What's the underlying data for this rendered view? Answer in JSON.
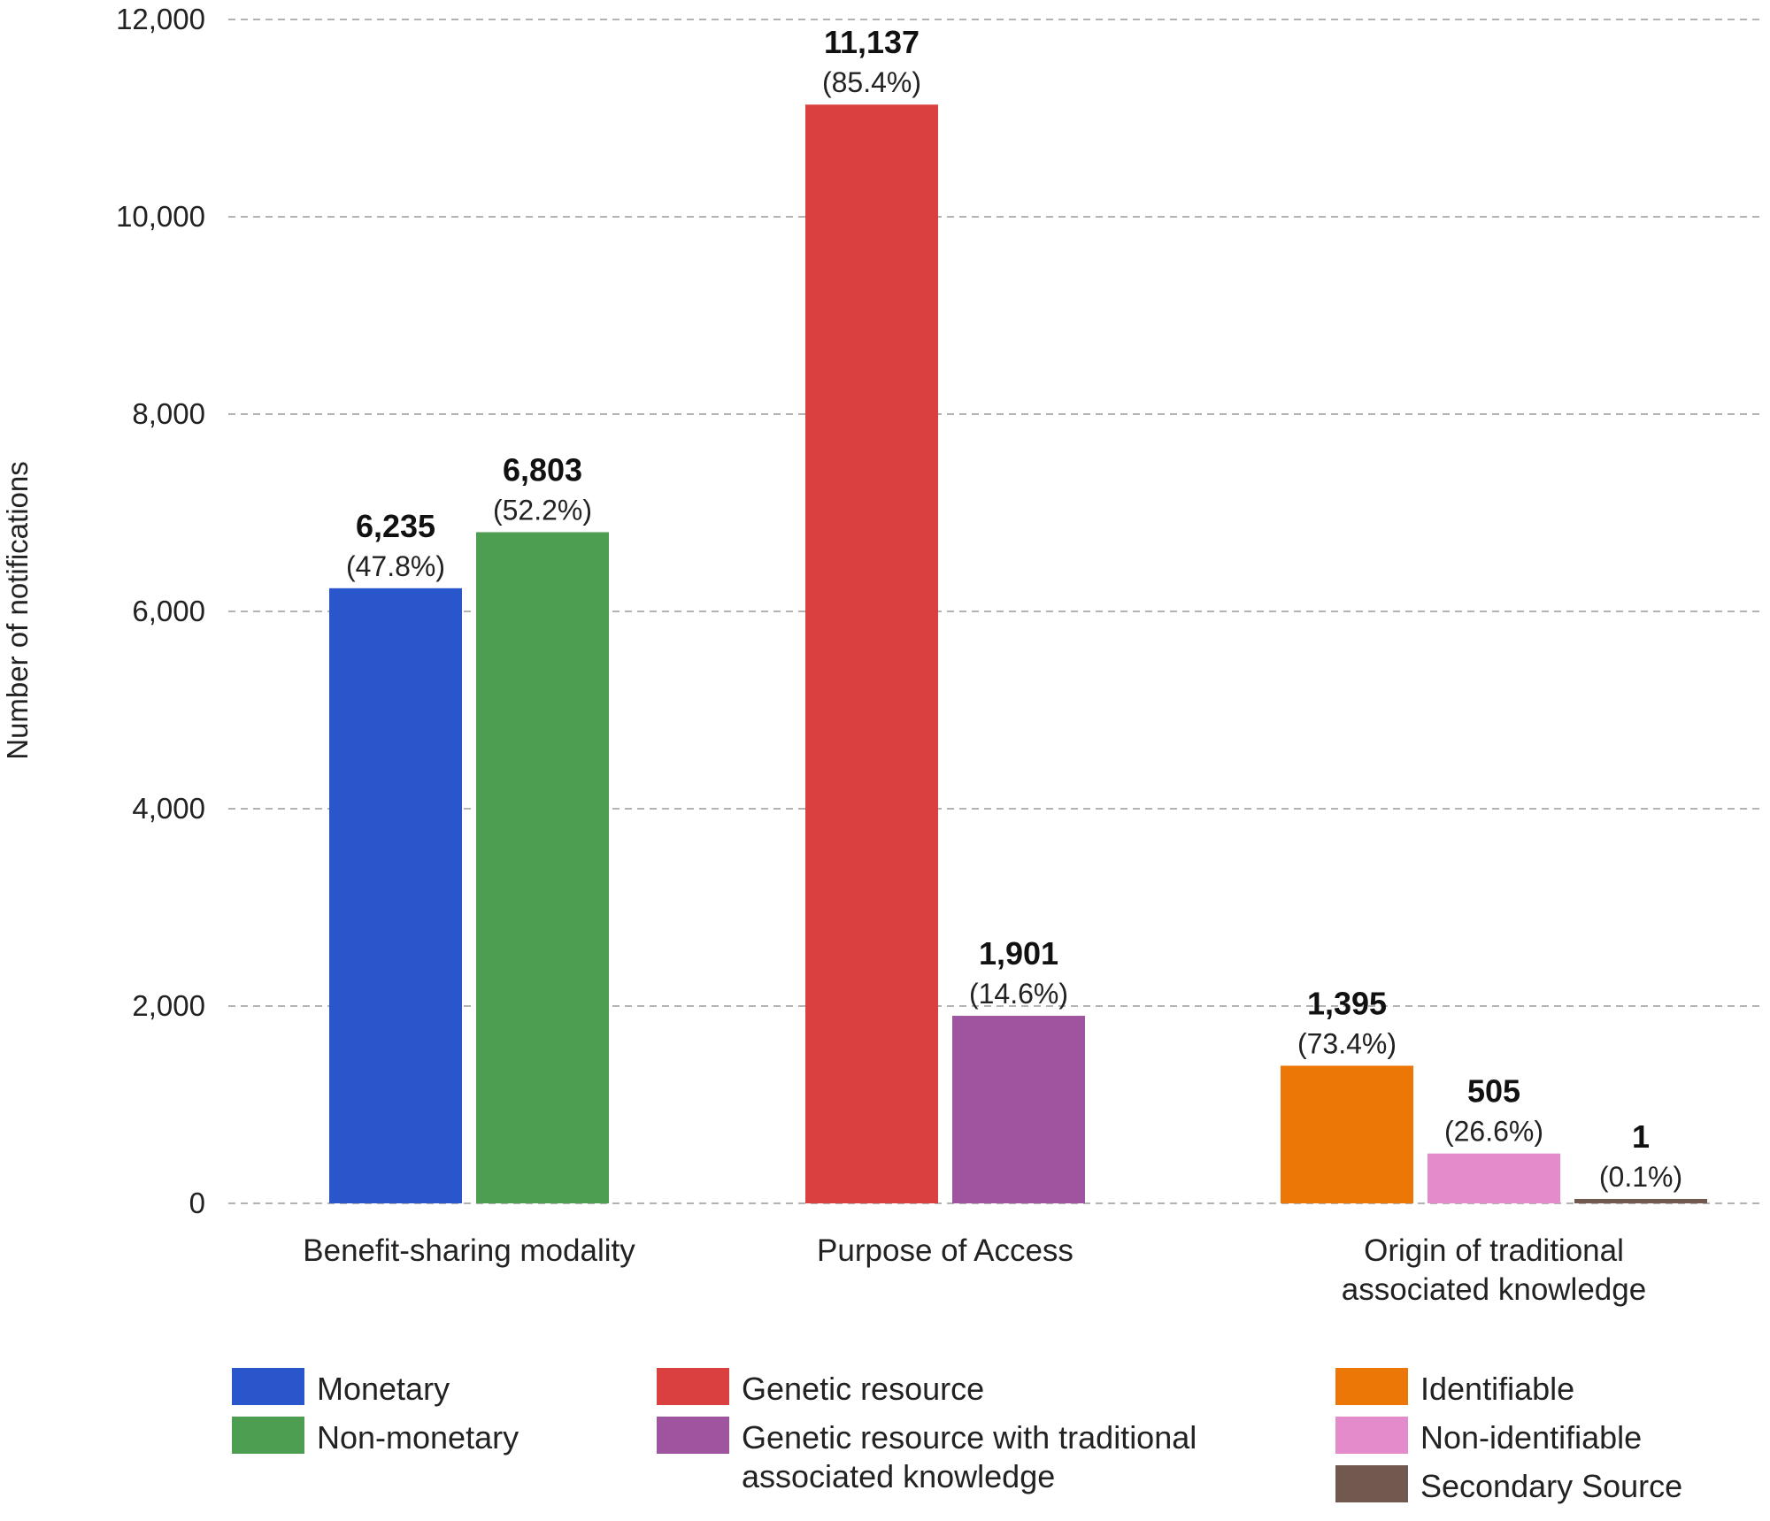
{
  "chart_data": {
    "type": "bar",
    "ylabel": "Number of notifications",
    "ylim": [
      0,
      12000
    ],
    "yticks": [
      0,
      2000,
      4000,
      6000,
      8000,
      10000,
      12000
    ],
    "ytick_labels": [
      "0",
      "2,000",
      "4,000",
      "6,000",
      "8,000",
      "10,000",
      "12,000"
    ],
    "grid": true,
    "legend_position": "bottom",
    "groups": [
      {
        "label_lines": [
          "Benefit-sharing modality"
        ],
        "bars": [
          {
            "name": "Monetary",
            "value": 6235,
            "value_label": "6,235",
            "pct_label": "(47.8%)",
            "color": "#2a56cc"
          },
          {
            "name": "Non-monetary",
            "value": 6803,
            "value_label": "6,803",
            "pct_label": "(52.2%)",
            "color": "#4d9e51"
          }
        ]
      },
      {
        "label_lines": [
          "Purpose of Access"
        ],
        "bars": [
          {
            "name": "Genetic resource",
            "value": 11137,
            "value_label": "11,137",
            "pct_label": "(85.4%)",
            "color": "#db4040"
          },
          {
            "name": "Genetic resource with traditional associated knowledge",
            "value": 1901,
            "value_label": "1,901",
            "pct_label": "(14.6%)",
            "color": "#9e549f"
          }
        ]
      },
      {
        "label_lines": [
          "Origin of traditional",
          "associated knowledge"
        ],
        "bars": [
          {
            "name": "Identifiable",
            "value": 1395,
            "value_label": "1,395",
            "pct_label": "(73.4%)",
            "color": "#ec7707"
          },
          {
            "name": "Non-identifiable",
            "value": 505,
            "value_label": "505",
            "pct_label": "(26.6%)",
            "color": "#e38bcb"
          },
          {
            "name": "Secondary Source",
            "value": 1,
            "value_label": "1",
            "pct_label": "(0.1%)",
            "color": "#725950"
          }
        ]
      }
    ],
    "legend": [
      [
        {
          "label_lines": [
            "Monetary"
          ],
          "color": "#2a56cc"
        },
        {
          "label_lines": [
            "Non-monetary"
          ],
          "color": "#4d9e51"
        }
      ],
      [
        {
          "label_lines": [
            "Genetic resource"
          ],
          "color": "#db4040"
        },
        {
          "label_lines": [
            "Genetic resource with traditional",
            "associated knowledge"
          ],
          "color": "#9e549f"
        }
      ],
      [
        {
          "label_lines": [
            "Identifiable"
          ],
          "color": "#ec7707"
        },
        {
          "label_lines": [
            "Non-identifiable"
          ],
          "color": "#e38bcb"
        },
        {
          "label_lines": [
            "Secondary Source"
          ],
          "color": "#725950"
        }
      ]
    ]
  }
}
